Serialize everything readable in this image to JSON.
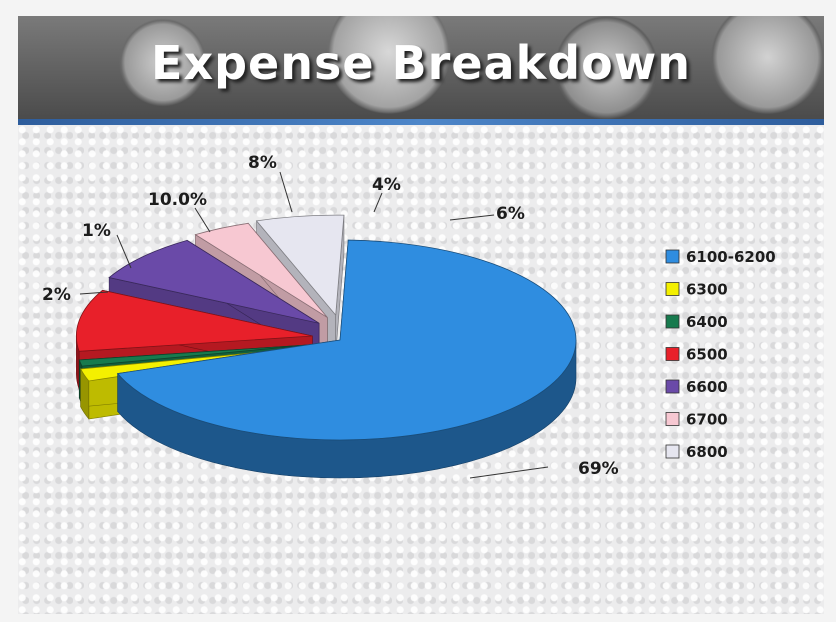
{
  "slide": {
    "title": "Expense Breakdown"
  },
  "chart_data": {
    "type": "pie",
    "title": "Expense Breakdown",
    "legend_position": "right",
    "slices": [
      {
        "category": "6100-6200",
        "value": 69,
        "label": "69%",
        "color": "#2f8de0"
      },
      {
        "category": "6300",
        "value": 2,
        "label": "2%",
        "color": "#f4f000"
      },
      {
        "category": "6400",
        "value": 1,
        "label": "1%",
        "color": "#177a4e"
      },
      {
        "category": "6500",
        "value": 10,
        "label": "10.0%",
        "color": "#e8202a"
      },
      {
        "category": "6600",
        "value": 8,
        "label": "8%",
        "color": "#6a4aa8"
      },
      {
        "category": "6700",
        "value": 4,
        "label": "4%",
        "color": "#f7c8d2"
      },
      {
        "category": "6800",
        "value": 6,
        "label": "6%",
        "color": "#e6e6f0"
      }
    ]
  }
}
